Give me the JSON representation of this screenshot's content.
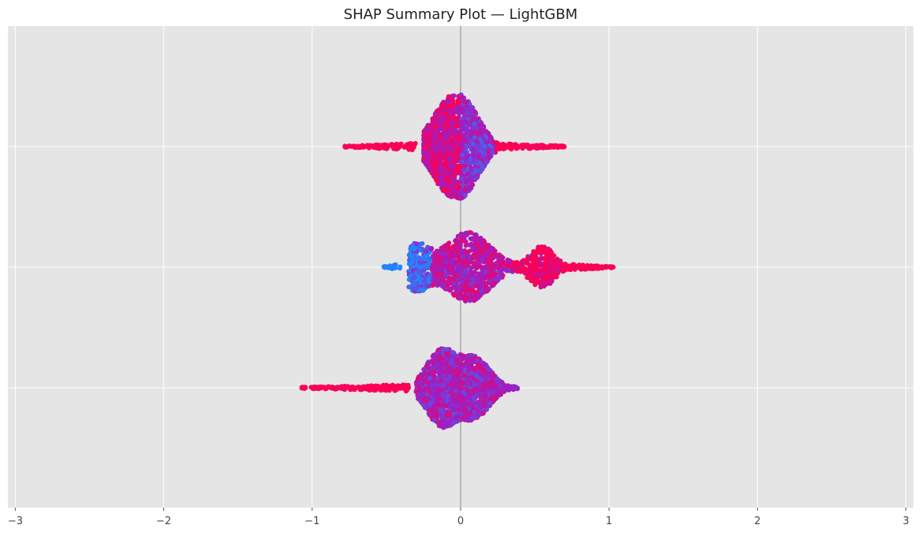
{
  "chart_data": {
    "type": "scatter",
    "subtype": "shap-beeswarm",
    "title": "SHAP Summary Plot — LightGBM",
    "xlabel": "",
    "ylabel": "",
    "xlim": [
      -3.05,
      3.05
    ],
    "x_ticks": [
      -3,
      -2,
      -1,
      0,
      1,
      2,
      3
    ],
    "x_tick_labels": [
      "−3",
      "−2",
      "−1",
      "0",
      "1",
      "2",
      "3"
    ],
    "grid": true,
    "background": "#e5e5e5",
    "grid_color": "#ffffff",
    "zero_line_color": "#888888",
    "colormap": {
      "low": "#1e88ff",
      "mid": "#9b1fc8",
      "high": "#ff0052"
    },
    "rows": [
      {
        "row": 0,
        "x_min": -0.78,
        "x_max": 0.7,
        "dense_core": [
          -0.25,
          0.25
        ],
        "peaks": [
          {
            "center": -0.1,
            "height": 0.62,
            "width": 0.11
          },
          {
            "center": 0.05,
            "height": 0.52,
            "width": 0.1
          }
        ],
        "tails": [
          {
            "side": "left",
            "from": -0.3,
            "to": -0.78,
            "color": "high"
          },
          {
            "side": "right",
            "from": 0.25,
            "to": 0.7,
            "color": "high"
          }
        ],
        "color_trend": "mixed-blue-right"
      },
      {
        "row": 1,
        "x_min": -0.52,
        "x_max": 1.03,
        "dense_core": [
          -0.35,
          0.8
        ],
        "peaks": [
          {
            "center": -0.3,
            "height": 0.38,
            "width": 0.08
          },
          {
            "center": 0.05,
            "height": 0.58,
            "width": 0.15
          },
          {
            "center": 0.55,
            "height": 0.35,
            "width": 0.08
          }
        ],
        "tails": [
          {
            "side": "left",
            "from": -0.4,
            "to": -0.52,
            "color": "low"
          },
          {
            "side": "right",
            "from": 0.7,
            "to": 1.03,
            "color": "high"
          }
        ],
        "color_trend": "low-left-high-right"
      },
      {
        "row": 2,
        "x_min": -1.08,
        "x_max": 0.4,
        "dense_core": [
          -0.3,
          0.32
        ],
        "peaks": [
          {
            "center": -0.13,
            "height": 0.62,
            "width": 0.1
          },
          {
            "center": 0.1,
            "height": 0.48,
            "width": 0.1
          }
        ],
        "tails": [
          {
            "side": "left",
            "from": -0.35,
            "to": -1.08,
            "color": "high"
          },
          {
            "side": "right",
            "from": 0.3,
            "to": 0.4,
            "color": "mid"
          }
        ],
        "color_trend": "high-left-mixed-core"
      }
    ]
  }
}
